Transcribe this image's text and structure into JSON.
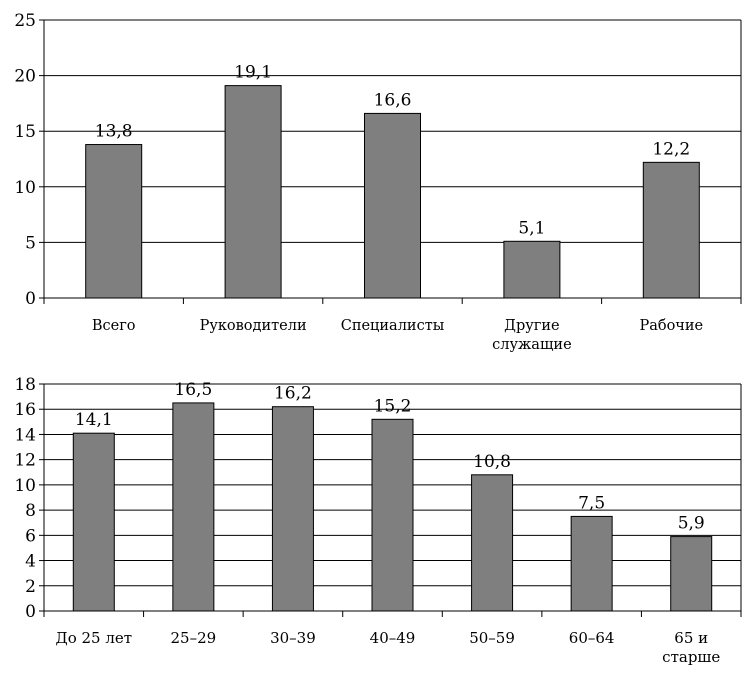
{
  "chart_data": [
    {
      "type": "bar",
      "categories": [
        "Всего",
        "Руководители",
        "Специалисты",
        "Другие служащие",
        "Рабочие"
      ],
      "category_lines": [
        [
          "Всего"
        ],
        [
          "Руководители"
        ],
        [
          "Специалисты"
        ],
        [
          "Другие",
          "служащие"
        ],
        [
          "Рабочие"
        ]
      ],
      "values": [
        13.8,
        19.1,
        16.6,
        5.1,
        12.2
      ],
      "value_labels": [
        "13,8",
        "19,1",
        "16,6",
        "5,1",
        "12,2"
      ],
      "ylim": [
        0,
        25
      ],
      "yticks": [
        0,
        5,
        10,
        15,
        20,
        25
      ],
      "grid": true,
      "bar_color": "#7f7f7f"
    },
    {
      "type": "bar",
      "categories": [
        "До 25 лет",
        "25–29",
        "30–39",
        "40–49",
        "50–59",
        "60–64",
        "65 и старше"
      ],
      "category_lines": [
        [
          "До 25 лет"
        ],
        [
          "25–29"
        ],
        [
          "30–39"
        ],
        [
          "40–49"
        ],
        [
          "50–59"
        ],
        [
          "60–64"
        ],
        [
          "65 и",
          "старше"
        ]
      ],
      "values": [
        14.1,
        16.5,
        16.2,
        15.2,
        10.8,
        7.5,
        5.9
      ],
      "value_labels": [
        "14,1",
        "16,5",
        "16,2",
        "15,2",
        "10,8",
        "7,5",
        "5,9"
      ],
      "ylim": [
        0,
        18
      ],
      "yticks": [
        0,
        2,
        4,
        6,
        8,
        10,
        12,
        14,
        16,
        18
      ],
      "grid": true,
      "bar_color": "#7f7f7f"
    }
  ]
}
